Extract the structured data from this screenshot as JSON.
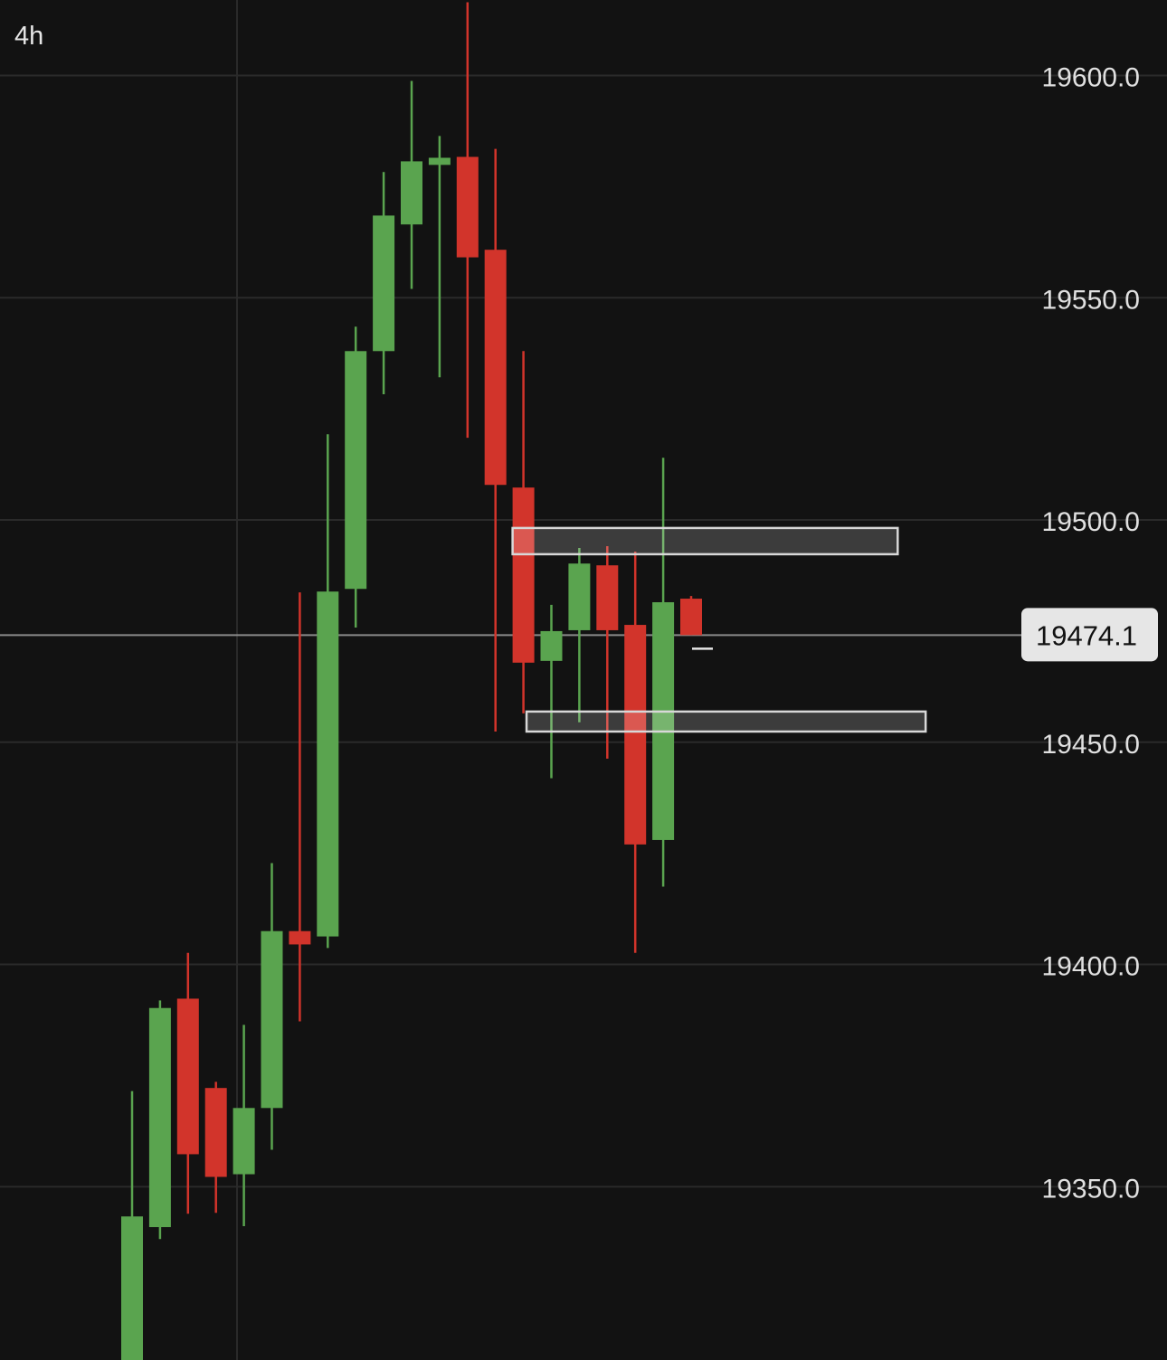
{
  "timeframe": "4h",
  "chart_data": {
    "type": "candlestick",
    "title": "",
    "xlabel": "",
    "ylabel": "",
    "ylim": [
      19311,
      19617
    ],
    "y_ticks": [
      "19600.0",
      "19550.0",
      "19500.0",
      "19450.0",
      "19400.0",
      "19350.0"
    ],
    "y_tick_values": [
      19600,
      19550,
      19500,
      19450,
      19400,
      19350
    ],
    "grid": true,
    "colors": {
      "up": "#5aa44f",
      "down": "#d2342b",
      "background": "#121212",
      "grid": "#2a2a2a",
      "price_line": "#8a8a8a"
    },
    "candles": [
      {
        "open": 19305,
        "high": 19371.5,
        "low": 19300,
        "close": 19343.3
      },
      {
        "open": 19340.9,
        "high": 19391.9,
        "low": 19338.2,
        "close": 19390.2
      },
      {
        "open": 19392.3,
        "high": 19402.6,
        "low": 19343.9,
        "close": 19357.3
      },
      {
        "open": 19372.2,
        "high": 19373.6,
        "low": 19344.1,
        "close": 19352.2
      },
      {
        "open": 19352.8,
        "high": 19386.4,
        "low": 19341.1,
        "close": 19367.7
      },
      {
        "open": 19367.7,
        "high": 19422.8,
        "low": 19358.3,
        "close": 19407.5
      },
      {
        "open": 19407.5,
        "high": 19483.7,
        "low": 19387.2,
        "close": 19404.5
      },
      {
        "open": 19406.3,
        "high": 19519.3,
        "low": 19403.7,
        "close": 19483.9
      },
      {
        "open": 19484.5,
        "high": 19543.5,
        "low": 19475.8,
        "close": 19538.0
      },
      {
        "open": 19538.0,
        "high": 19578.3,
        "low": 19528.3,
        "close": 19568.5
      },
      {
        "open": 19566.5,
        "high": 19598.8,
        "low": 19552.0,
        "close": 19580.7
      },
      {
        "open": 19579.9,
        "high": 19586.4,
        "low": 19532.1,
        "close": 19581.5
      },
      {
        "open": 19581.7,
        "high": 19616.5,
        "low": 19518.5,
        "close": 19559.1
      },
      {
        "open": 19560.8,
        "high": 19583.5,
        "low": 19452.4,
        "close": 19507.9
      },
      {
        "open": 19507.3,
        "high": 19538.0,
        "low": 19456.5,
        "close": 19467.9
      },
      {
        "open": 19468.3,
        "high": 19480.9,
        "low": 19441.9,
        "close": 19475.0
      },
      {
        "open": 19475.2,
        "high": 19493.7,
        "low": 19454.5,
        "close": 19490.2
      },
      {
        "open": 19489.8,
        "high": 19494.1,
        "low": 19446.3,
        "close": 19475.2
      },
      {
        "open": 19476.4,
        "high": 19492.9,
        "low": 19402.6,
        "close": 19427.0
      },
      {
        "open": 19428.0,
        "high": 19514.0,
        "low": 19417.5,
        "close": 19481.5
      },
      {
        "open": 19482.3,
        "high": 19482.9,
        "low": 19474.1,
        "close": 19474.1
      }
    ],
    "zones": [
      {
        "top": 19498.2,
        "bottom": 19492.3,
        "from_candle": 14,
        "to_candle": 27
      },
      {
        "top": 19456.9,
        "bottom": 19452.4,
        "from_candle": 14.5,
        "to_candle": 28
      }
    ],
    "current_price": 19474.1,
    "current_price_label": "19474.1"
  }
}
